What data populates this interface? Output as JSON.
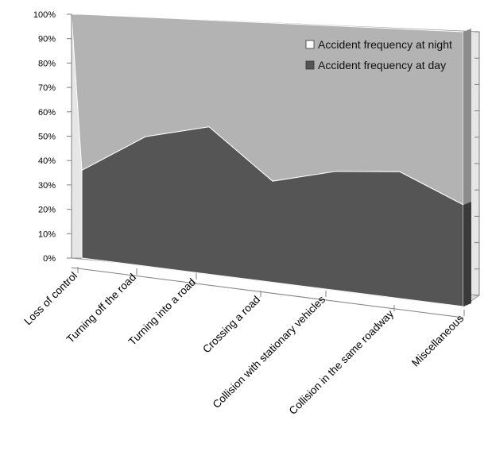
{
  "chart_data": {
    "type": "area",
    "subtype": "100% stacked, 3-D",
    "categories": [
      "Loss of control",
      "Turning off the road",
      "Turning into a road",
      "Crossing a road",
      "Collision with stationary vehicles",
      "Collision in the same roadway",
      "Miscellaneous"
    ],
    "series": [
      {
        "name": "Accident frequency at day",
        "values": [
          36,
          52,
          58,
          39,
          45,
          47,
          37
        ],
        "color": "#555555"
      },
      {
        "name": "Accident frequency at night",
        "values": [
          64,
          48,
          42,
          61,
          55,
          53,
          63
        ],
        "color": "#b3b3b3"
      }
    ],
    "ylim": [
      0,
      100
    ],
    "y_ticks": [
      "0%",
      "10%",
      "20%",
      "30%",
      "40%",
      "50%",
      "60%",
      "70%",
      "80%",
      "90%",
      "100%"
    ],
    "legend_position": "top-right",
    "grid": false
  }
}
